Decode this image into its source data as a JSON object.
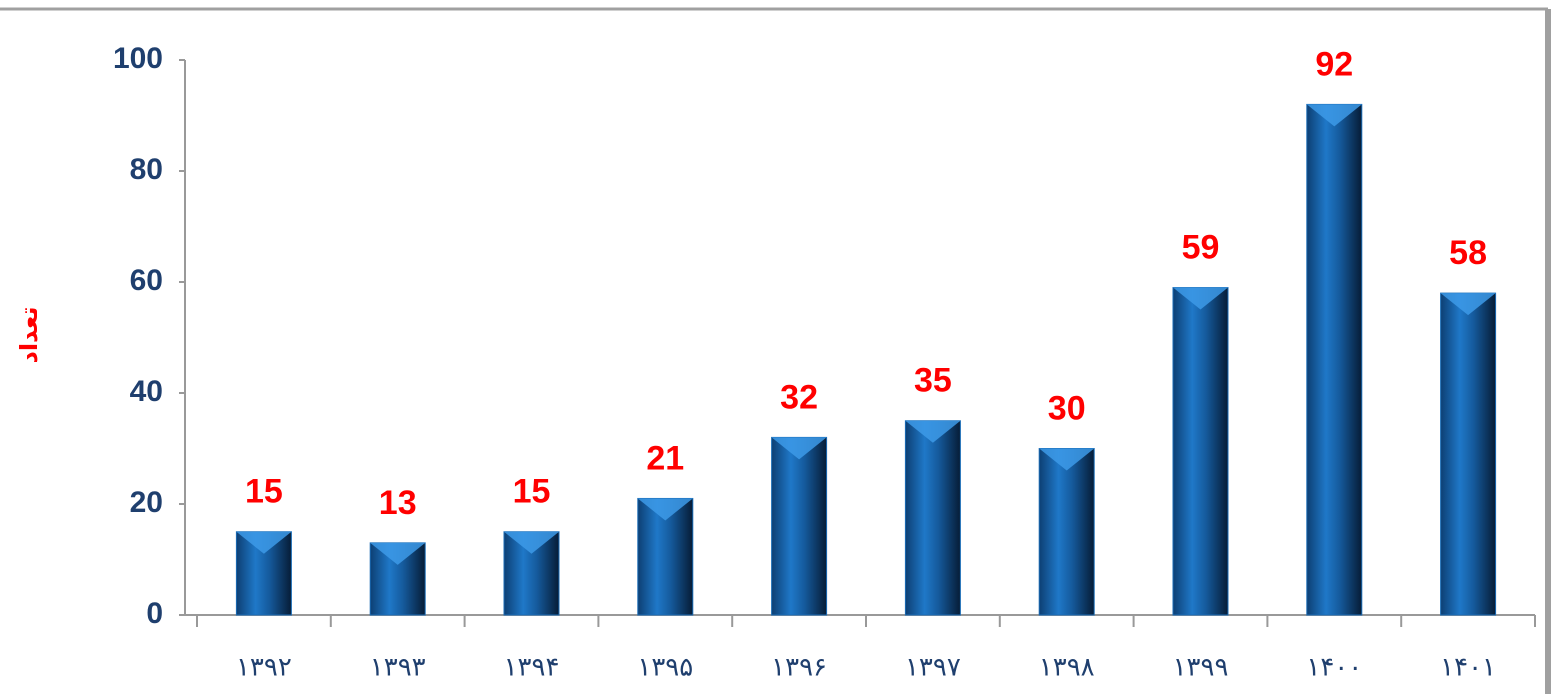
{
  "chart_data": {
    "type": "bar",
    "y_label": "تعداد",
    "categories": [
      "۱۳۹۲",
      "۱۳۹۳",
      "۱۳۹۴",
      "۱۳۹۵",
      "۱۳۹۶",
      "۱۳۹۷",
      "۱۳۹۸",
      "۱۳۹۹",
      "۱۴۰۰",
      "۱۴۰۱"
    ],
    "values": [
      15,
      13,
      15,
      21,
      32,
      35,
      30,
      59,
      92,
      58
    ],
    "color": "#1a6bb5",
    "ylim": [
      0,
      100
    ],
    "yticks": [
      0,
      20,
      40,
      60,
      80,
      100
    ],
    "grid": false
  }
}
